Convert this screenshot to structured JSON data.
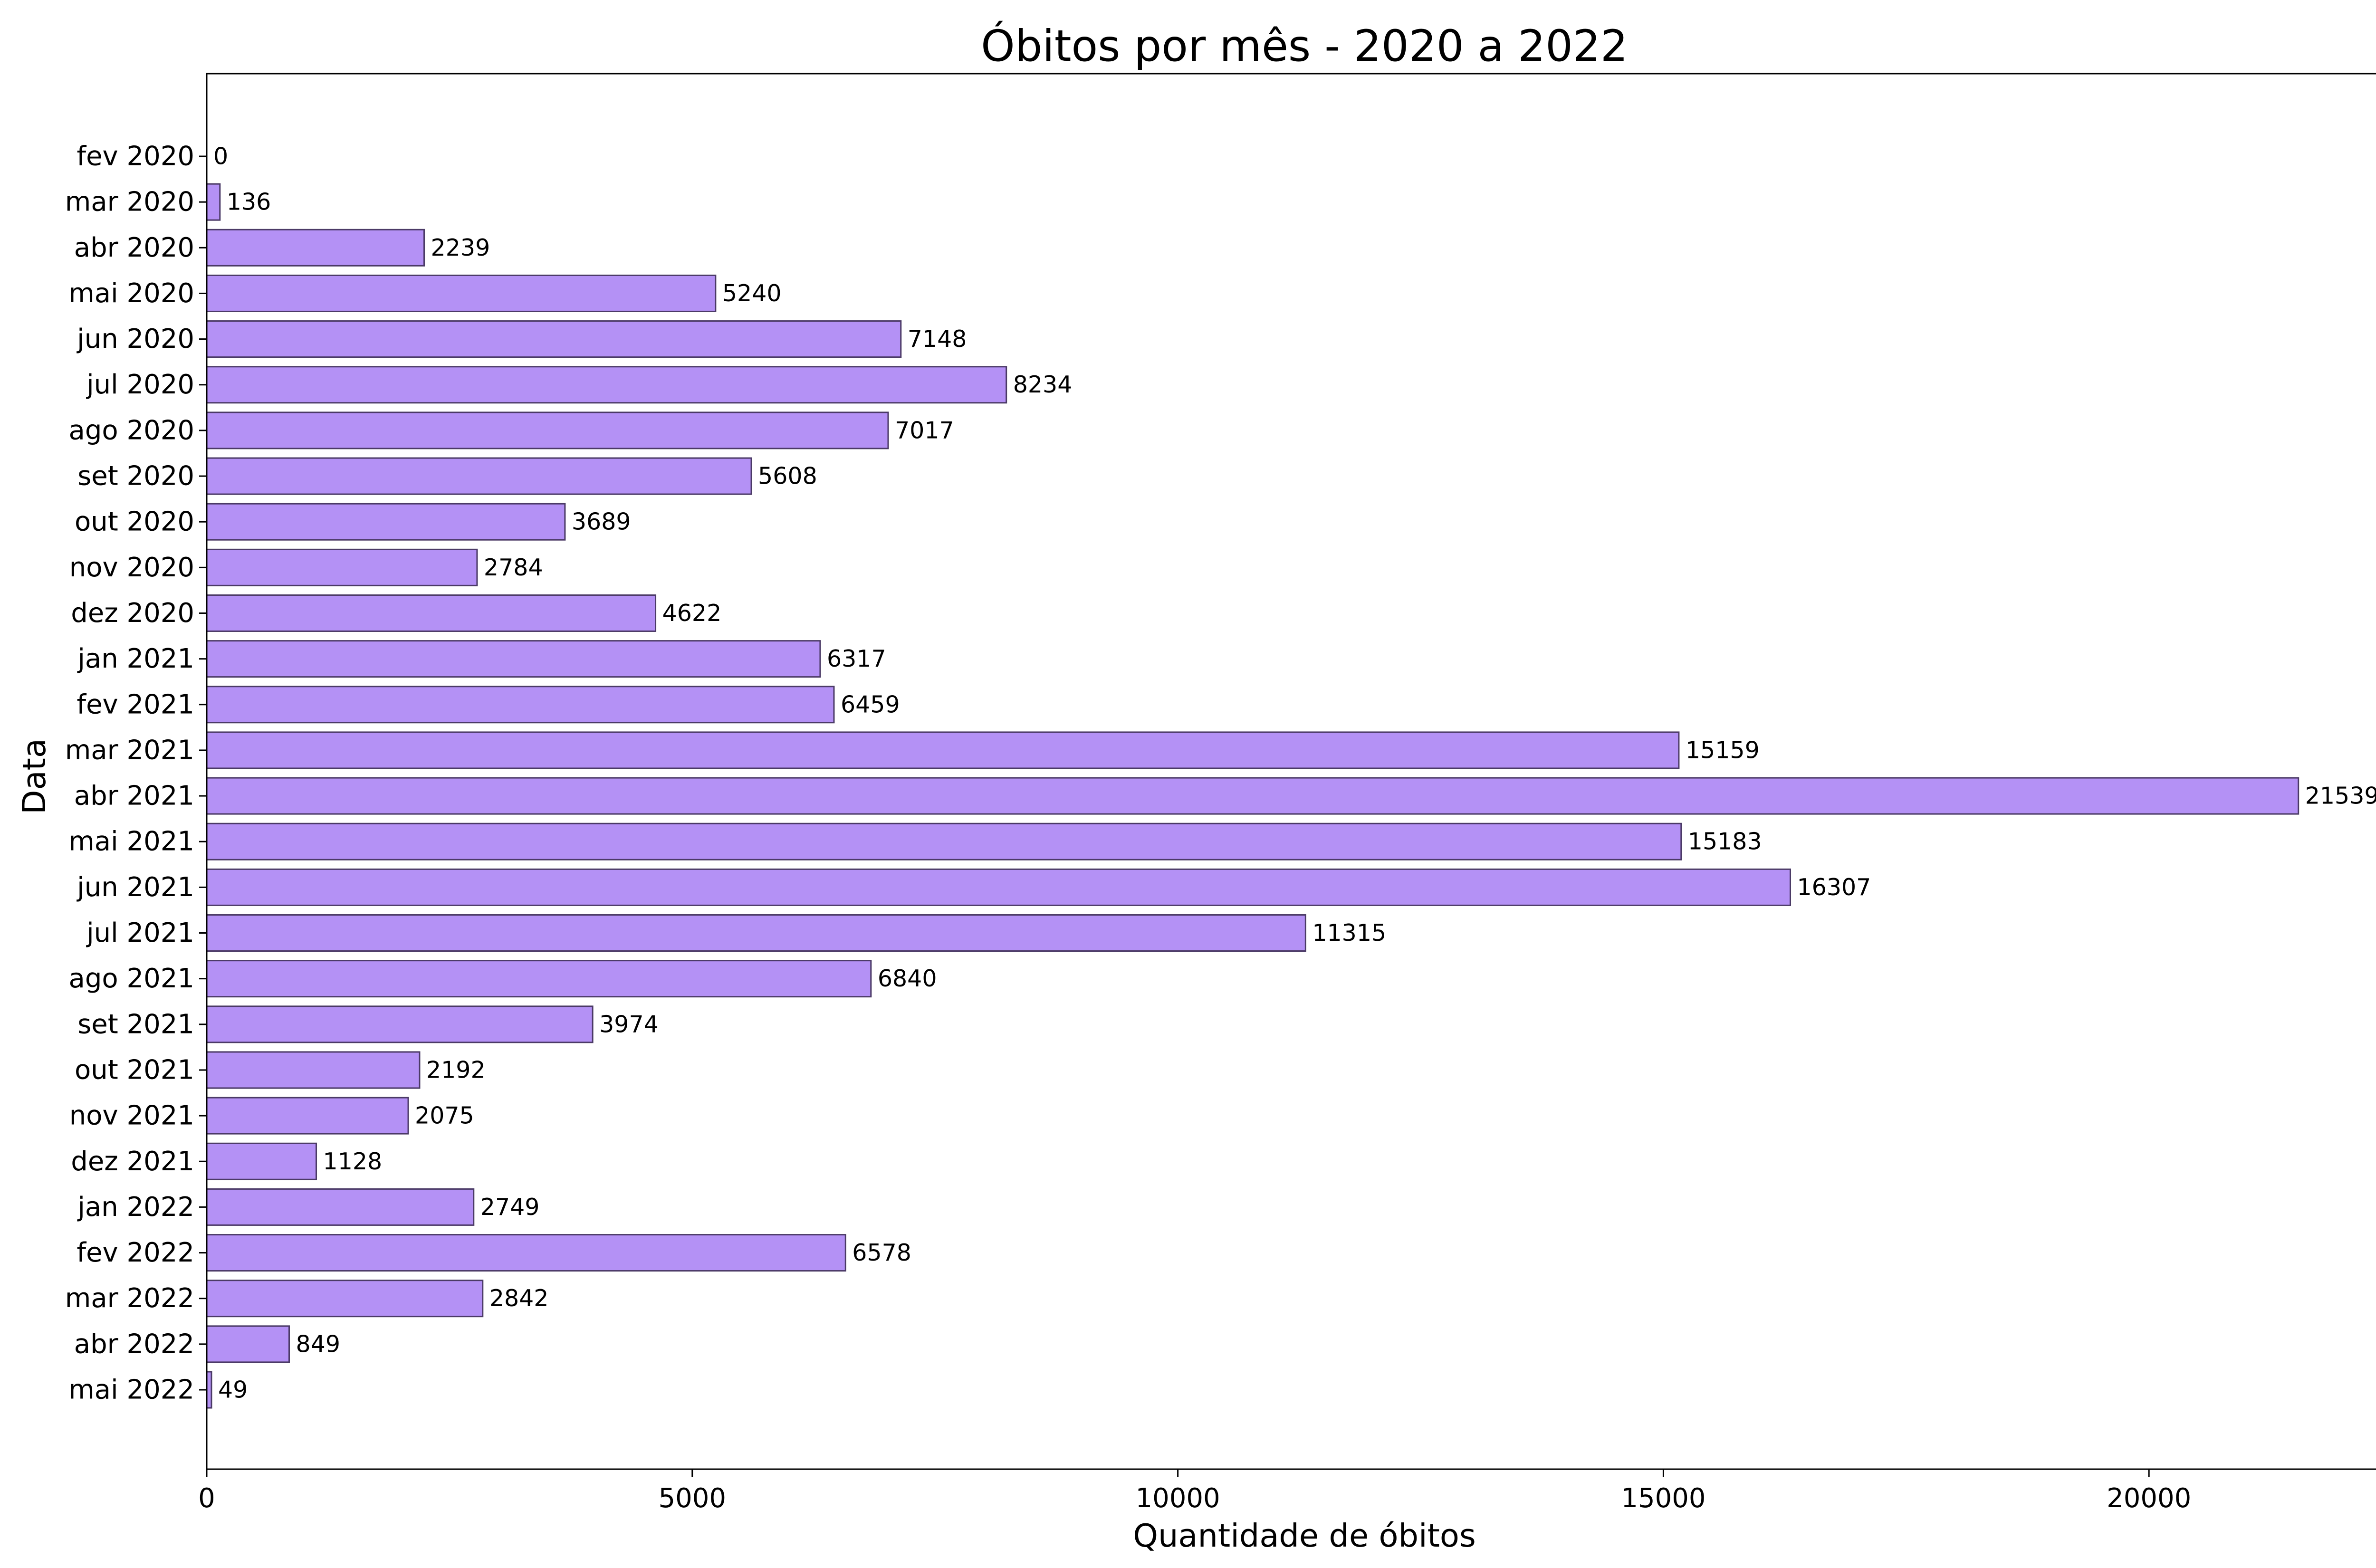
{
  "chart_data": {
    "type": "bar",
    "orientation": "horizontal",
    "title": "Óbitos por mês - 2020 a 2022",
    "xlabel": "Quantidade de óbitos",
    "ylabel": "Data",
    "categories": [
      "fev 2020",
      "mar 2020",
      "abr 2020",
      "mai 2020",
      "jun 2020",
      "jul 2020",
      "ago 2020",
      "set 2020",
      "out 2020",
      "nov 2020",
      "dez 2020",
      "jan 2021",
      "fev 2021",
      "mar 2021",
      "abr 2021",
      "mai 2021",
      "jun 2021",
      "jul 2021",
      "ago 2021",
      "set 2021",
      "out 2021",
      "nov 2021",
      "dez 2021",
      "jan 2022",
      "fev 2022",
      "mar 2022",
      "abr 2022",
      "mai 2022"
    ],
    "values": [
      0,
      136,
      2239,
      5240,
      7148,
      8234,
      7017,
      5608,
      3689,
      2784,
      4622,
      6317,
      6459,
      15159,
      21539,
      15183,
      16307,
      11315,
      6840,
      3974,
      2192,
      2075,
      1128,
      2749,
      6578,
      2842,
      849,
      49
    ],
    "xlim": [
      0,
      22617
    ],
    "xticks": [
      0,
      5000,
      10000,
      15000,
      20000
    ],
    "grid": false,
    "legend": "none",
    "colors": {
      "bar_fill": "#b491f5",
      "bar_edge": "#4b3a66",
      "axis": "#000000",
      "text": "#000000"
    }
  }
}
